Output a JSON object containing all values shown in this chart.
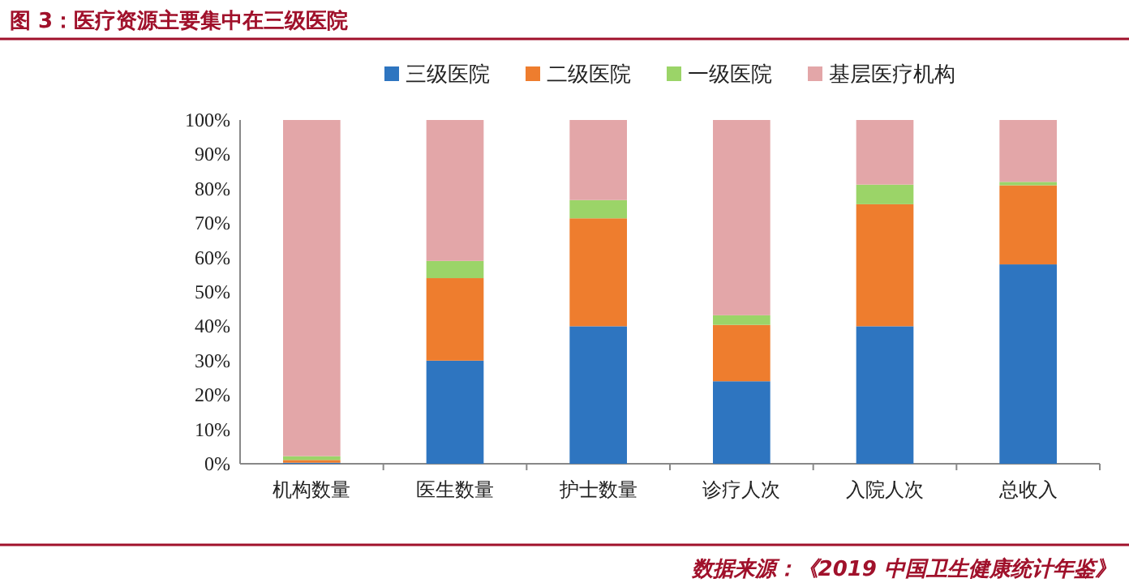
{
  "chart_data": {
    "type": "bar",
    "title": "图 3：医疗资源主要集中在三级医院",
    "stacked": true,
    "legend": "top",
    "categories": [
      "机构数量",
      "医生数量",
      "护士数量",
      "诊疗人次",
      "入院人次",
      "总收入"
    ],
    "series": [
      {
        "name": "三级医院",
        "color": "#2e75c0",
        "values": [
          0.3,
          30,
          40,
          24,
          40,
          58
        ]
      },
      {
        "name": "二级医院",
        "color": "#ee7d2e",
        "values": [
          0.8,
          24,
          31.4,
          16.4,
          35.5,
          23
        ]
      },
      {
        "name": "一级医院",
        "color": "#9bd468",
        "values": [
          1.1,
          5,
          5.3,
          2.8,
          5.7,
          1
        ]
      },
      {
        "name": "基层医疗机构",
        "color": "#e3a6a8",
        "values": [
          97.8,
          41,
          23.3,
          56.8,
          18.8,
          18
        ]
      }
    ],
    "ylim": [
      0,
      100
    ],
    "yticks": [
      {
        "value": 0,
        "label": "0%"
      },
      {
        "value": 10,
        "label": "10%"
      },
      {
        "value": 20,
        "label": "20%"
      },
      {
        "value": 30,
        "label": "30%"
      },
      {
        "value": 40,
        "label": "40%"
      },
      {
        "value": 50,
        "label": "50%"
      },
      {
        "value": 60,
        "label": "60%"
      },
      {
        "value": 70,
        "label": "70%"
      },
      {
        "value": 80,
        "label": "80%"
      },
      {
        "value": 90,
        "label": "90%"
      },
      {
        "value": 100,
        "label": "100%"
      }
    ],
    "annotations": [
      "数据来源：《2019 中国卫生健康统计年鉴》"
    ]
  }
}
